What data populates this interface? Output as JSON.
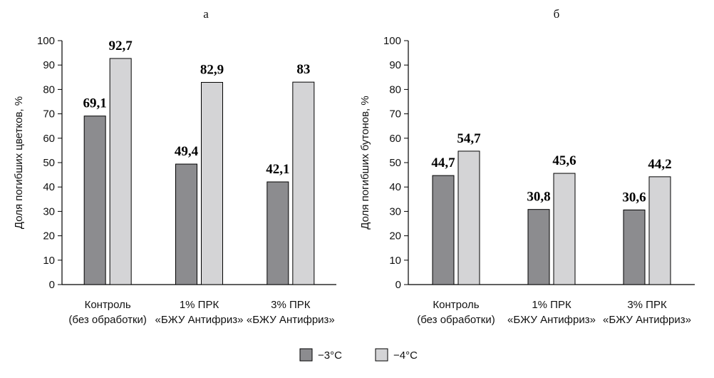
{
  "chart_data": [
    {
      "type": "bar",
      "title": "а",
      "ylabel": "Доля погибших цветков, %",
      "xlabel": "",
      "ylim": [
        0,
        100
      ],
      "yticks": [
        0,
        10,
        20,
        30,
        40,
        50,
        60,
        70,
        80,
        90,
        100
      ],
      "grid": false,
      "categories": [
        [
          "Контроль",
          "(без обработки)"
        ],
        [
          "1% ПРК",
          "«БЖУ Антифриз»"
        ],
        [
          "3% ПРК",
          "«БЖУ Антифриз»"
        ]
      ],
      "series": [
        {
          "name": "−3°C",
          "color": "#8c8c8f",
          "values": [
            69.1,
            49.4,
            42.1
          ],
          "labels": [
            "69,1",
            "49,4",
            "42,1"
          ]
        },
        {
          "name": "−4°C",
          "color": "#d4d4d6",
          "values": [
            92.7,
            82.9,
            83
          ],
          "labels": [
            "92,7",
            "82,9",
            "83"
          ]
        }
      ]
    },
    {
      "type": "bar",
      "title": "б",
      "ylabel": "Доля погибших бутонов, %",
      "xlabel": "",
      "ylim": [
        0,
        100
      ],
      "yticks": [
        0,
        10,
        20,
        30,
        40,
        50,
        60,
        70,
        80,
        90,
        100
      ],
      "grid": false,
      "categories": [
        [
          "Контроль",
          "(без обработки)"
        ],
        [
          "1% ПРК",
          "«БЖУ Антифриз»"
        ],
        [
          "3% ПРК",
          "«БЖУ Антифриз»"
        ]
      ],
      "series": [
        {
          "name": "−3°C",
          "color": "#8c8c8f",
          "values": [
            44.7,
            30.8,
            30.6
          ],
          "labels": [
            "44,7",
            "30,8",
            "30,6"
          ]
        },
        {
          "name": "−4°C",
          "color": "#d4d4d6",
          "values": [
            54.7,
            45.6,
            44.2
          ],
          "labels": [
            "54,7",
            "45,6",
            "44,2"
          ]
        }
      ]
    }
  ],
  "legend": {
    "placement": "bottom-center",
    "items": [
      {
        "label": "−3°C",
        "color": "#8c8c8f"
      },
      {
        "label": "−4°C",
        "color": "#d4d4d6"
      }
    ]
  }
}
